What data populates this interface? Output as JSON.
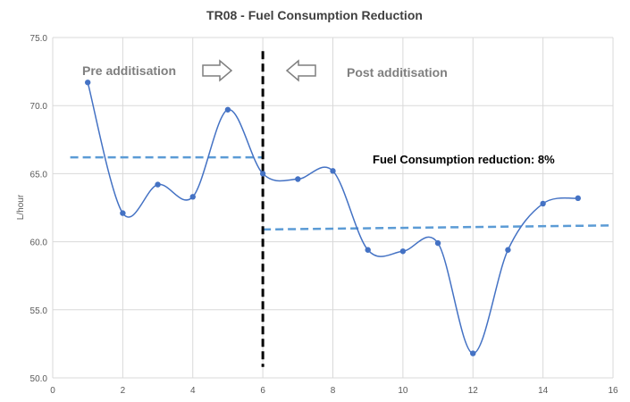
{
  "chart_data": {
    "type": "scatter",
    "title": "TR08  - Fuel Consumption Reduction",
    "xlabel": "",
    "ylabel": "L/hour",
    "xlim": [
      0,
      16
    ],
    "ylim": [
      50.0,
      75.0
    ],
    "x_ticks": [
      "0",
      "2",
      "4",
      "6",
      "8",
      "10",
      "12",
      "14",
      "16"
    ],
    "y_ticks": [
      "50.0",
      "55.0",
      "60.0",
      "65.0",
      "70.0",
      "75.0"
    ],
    "grid": true,
    "series": [
      {
        "x": [
          1,
          2,
          3,
          4,
          5,
          6,
          7,
          8,
          9,
          10,
          11,
          12,
          13,
          14,
          15
        ],
        "y": [
          71.7,
          62.1,
          64.2,
          63.3,
          69.7,
          65.0,
          64.6,
          65.2,
          59.4,
          59.3,
          59.9,
          51.8,
          59.4,
          62.8,
          63.2
        ],
        "color": "#4472c4",
        "smooth": true
      }
    ],
    "trendlines": [
      {
        "x": [
          0.5,
          6.0
        ],
        "y": [
          66.2,
          66.2
        ],
        "color": "#5b9bd5",
        "style": "dashed"
      },
      {
        "x": [
          6.0,
          16.0
        ],
        "y": [
          60.9,
          61.2
        ],
        "color": "#5b9bd5",
        "style": "dashed"
      }
    ],
    "divider": {
      "x": 6.0,
      "y_range": [
        50.8,
        74.0
      ],
      "color": "#000000",
      "style": "dashed"
    },
    "annotations": {
      "pre": "Pre additisation",
      "post": "Post additisation",
      "reduction": "Fuel Consumption reduction: 8%"
    }
  }
}
